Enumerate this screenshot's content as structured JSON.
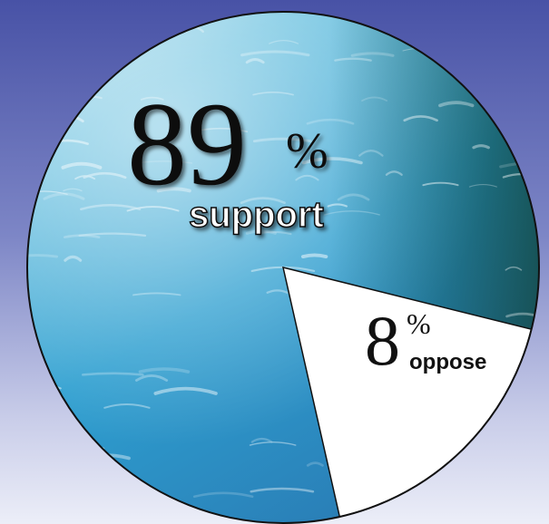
{
  "chart_data": {
    "type": "pie",
    "categories": [
      "support",
      "oppose"
    ],
    "values": [
      89,
      8
    ],
    "unit": "%",
    "labels": [
      {
        "number": "89",
        "unit": "%",
        "text": "support"
      },
      {
        "number": "8",
        "unit": "%",
        "text": "oppose"
      }
    ]
  },
  "colors": {
    "background_top": "#4852a6",
    "background_bottom": "#eceef8",
    "support_fill": "#3aa3d2",
    "oppose_fill": "#ffffff",
    "outline": "#111111"
  }
}
